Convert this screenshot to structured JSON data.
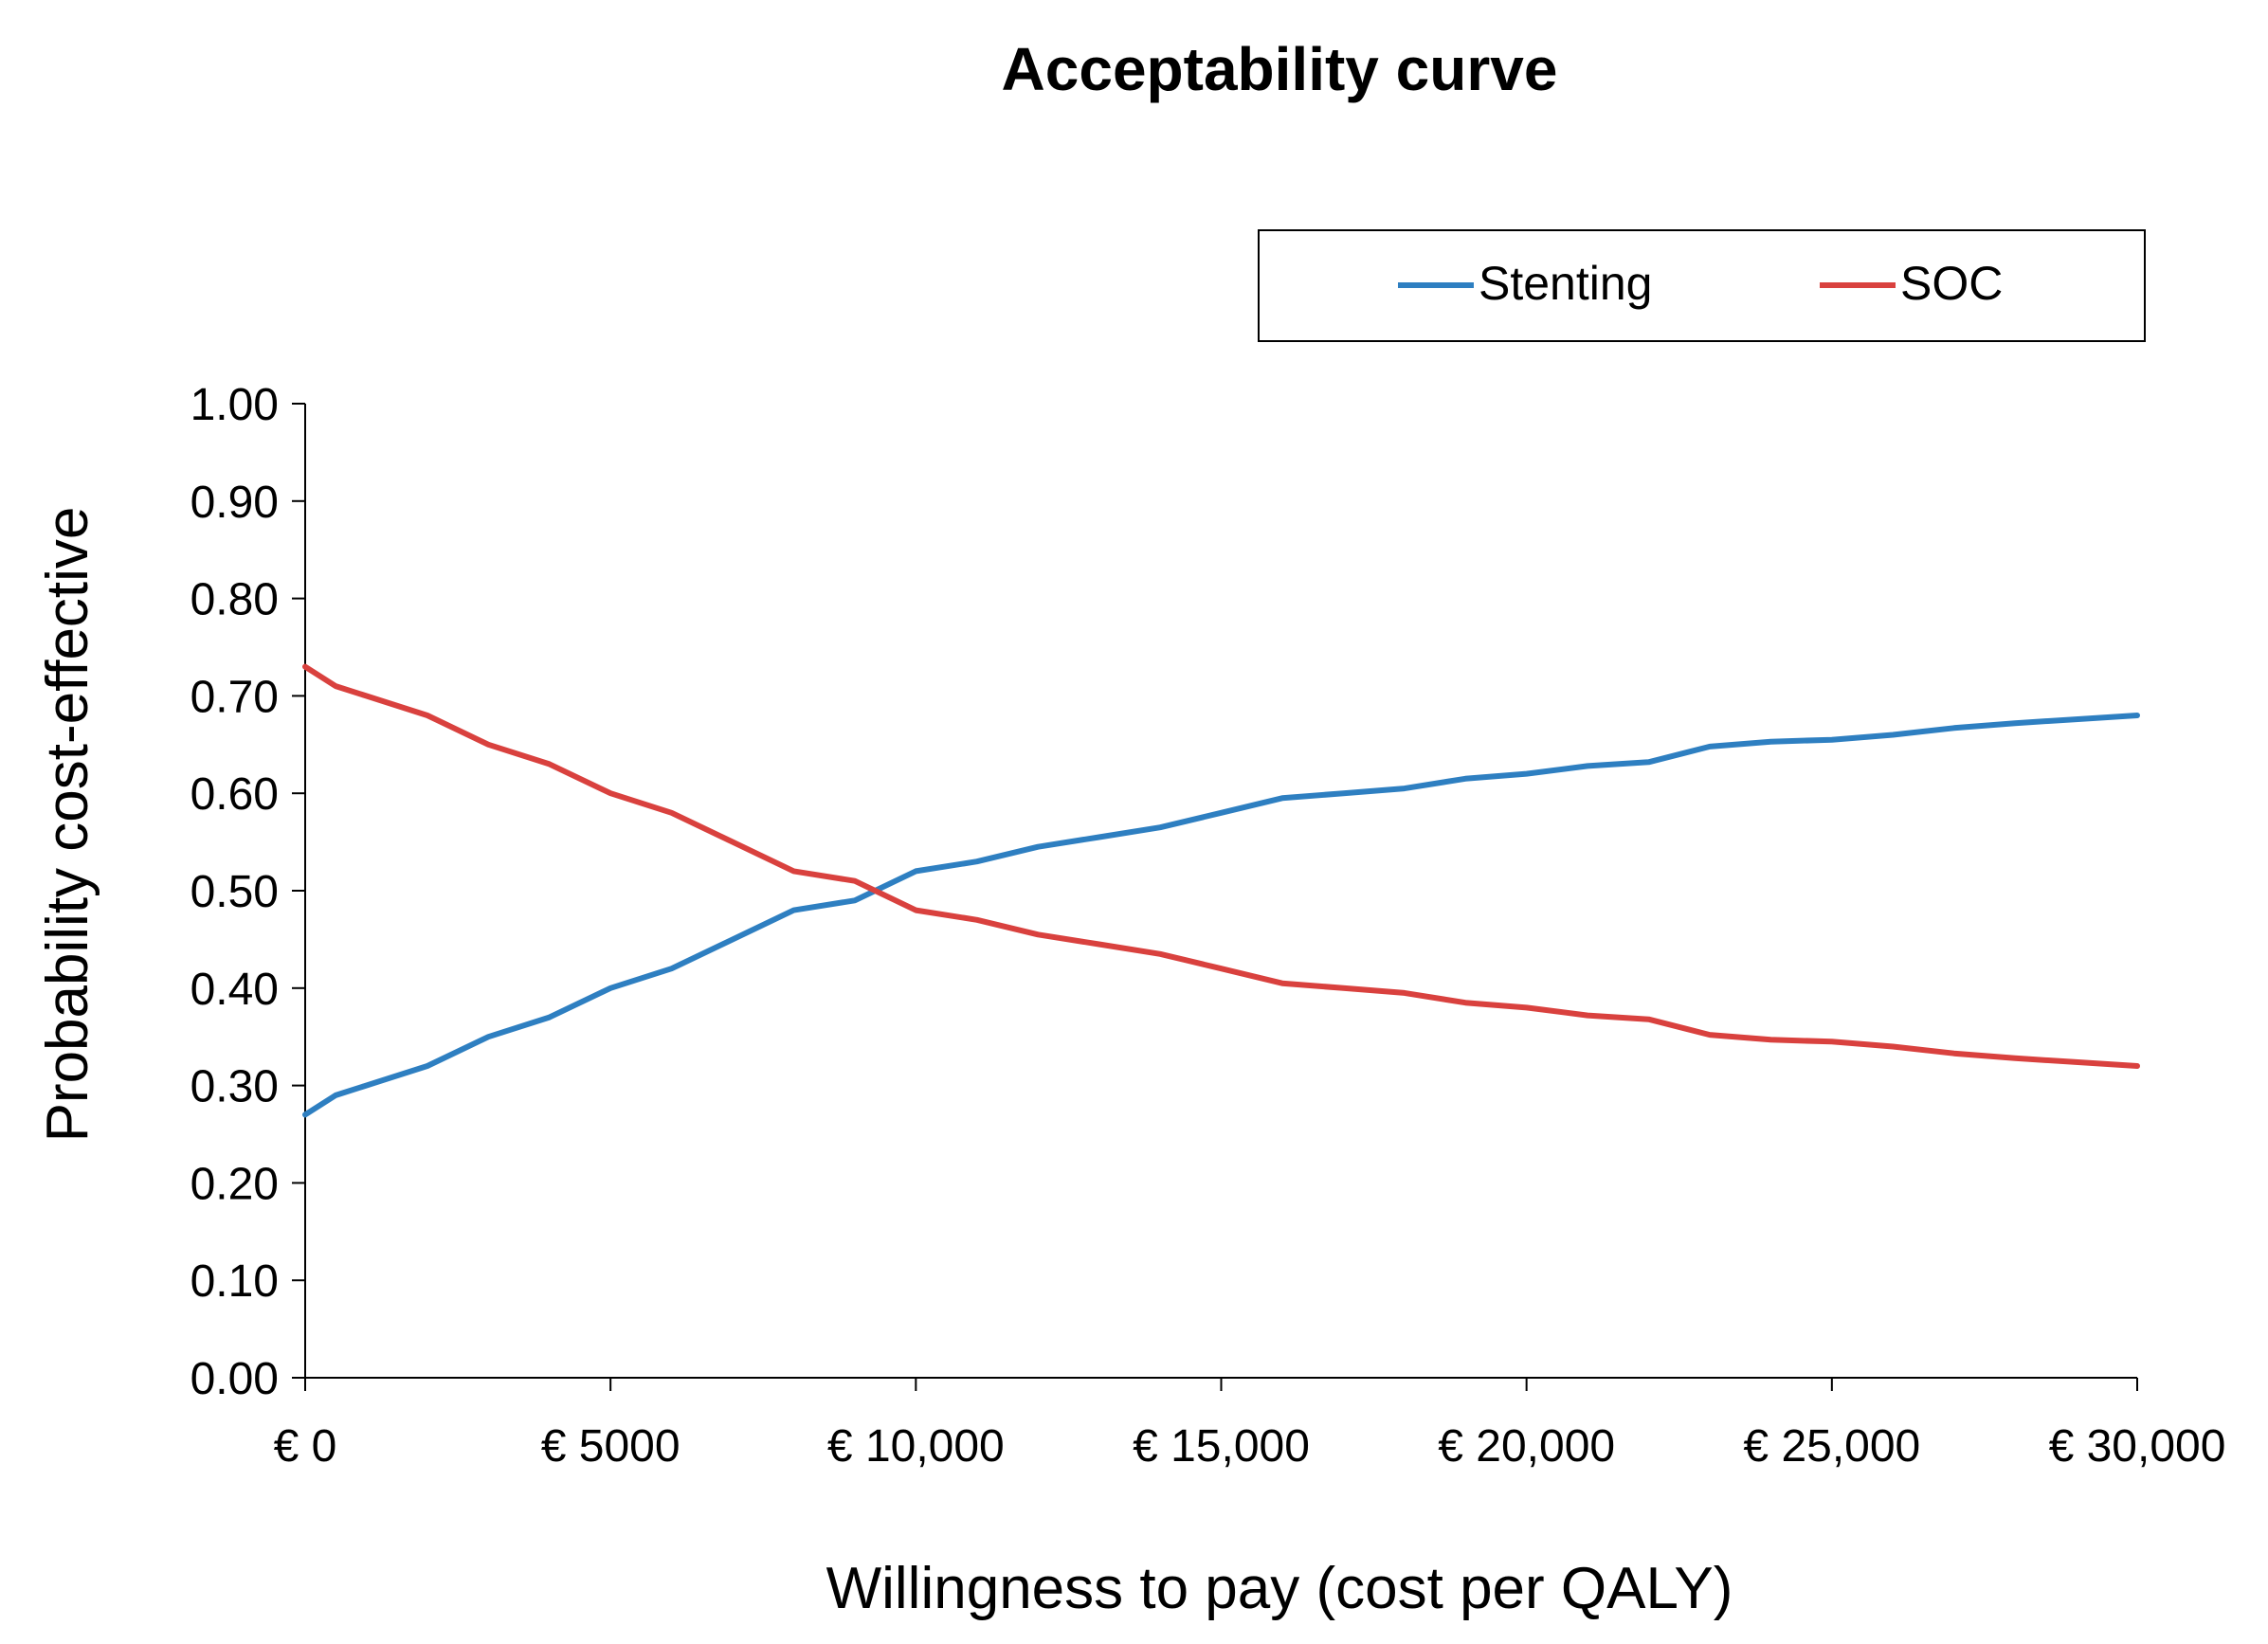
{
  "chart_data": {
    "type": "line",
    "title": "Acceptability curve",
    "xlabel": "Willingness to pay (cost per QALY)",
    "ylabel": "Probability cost-effective",
    "xlim": [
      0,
      30000
    ],
    "ylim": [
      0,
      1
    ],
    "grid": false,
    "legend_position": "top-right",
    "x_ticks": [
      0,
      5000,
      10000,
      15000,
      20000,
      25000,
      30000
    ],
    "x_tick_labels": [
      "€ 0",
      "€ 5000",
      "€ 10,000",
      "€ 15,000",
      "€ 20,000",
      "€ 25,000",
      "€ 30,000"
    ],
    "y_ticks": [
      0,
      0.1,
      0.2,
      0.3,
      0.4,
      0.5,
      0.6,
      0.7,
      0.8,
      0.9,
      1.0
    ],
    "y_tick_labels": [
      "0.00",
      "0.10",
      "0.20",
      "0.30",
      "0.40",
      "0.50",
      "0.60",
      "0.70",
      "0.80",
      "0.90",
      "1.00"
    ],
    "x": [
      0,
      500,
      1000,
      2000,
      3000,
      4000,
      5000,
      6000,
      7000,
      8000,
      9000,
      10000,
      11000,
      12000,
      13000,
      14000,
      15000,
      16000,
      17000,
      18000,
      19000,
      20000,
      21000,
      22000,
      23000,
      24000,
      25000,
      26000,
      27000,
      28000,
      29000,
      30000
    ],
    "series": [
      {
        "name": "Stenting",
        "color": "#2E7FC1",
        "values": [
          0.27,
          0.29,
          0.3,
          0.32,
          0.35,
          0.37,
          0.4,
          0.42,
          0.45,
          0.48,
          0.49,
          0.52,
          0.53,
          0.545,
          0.555,
          0.565,
          0.58,
          0.595,
          0.6,
          0.605,
          0.615,
          0.62,
          0.628,
          0.632,
          0.648,
          0.653,
          0.655,
          0.66,
          0.667,
          0.672,
          0.676,
          0.68
        ]
      },
      {
        "name": "SOC",
        "color": "#D9413E",
        "values": [
          0.73,
          0.71,
          0.7,
          0.68,
          0.65,
          0.63,
          0.6,
          0.58,
          0.55,
          0.52,
          0.51,
          0.48,
          0.47,
          0.455,
          0.445,
          0.435,
          0.42,
          0.405,
          0.4,
          0.395,
          0.385,
          0.38,
          0.372,
          0.368,
          0.352,
          0.347,
          0.345,
          0.34,
          0.333,
          0.328,
          0.324,
          0.32
        ]
      }
    ]
  }
}
